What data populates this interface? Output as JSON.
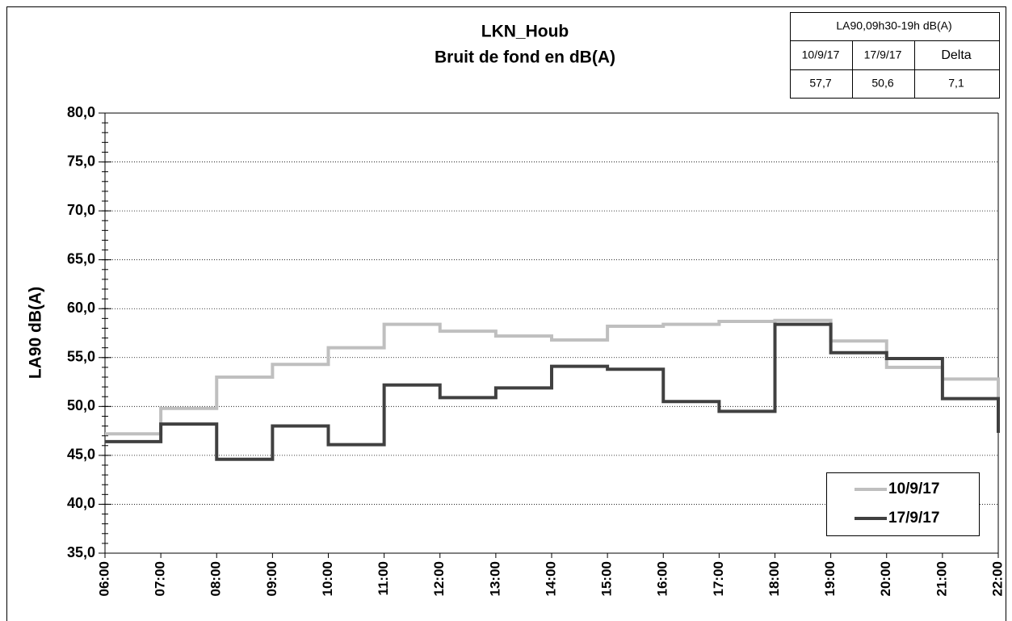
{
  "chart_data": {
    "type": "step",
    "title": "LKN_Houb",
    "subtitle": "Bruit de fond en dB(A)",
    "y_label": "LA90 dB(A)",
    "x": [
      "06:00",
      "07:00",
      "08:00",
      "09:00",
      "10:00",
      "11:00",
      "12:00",
      "13:00",
      "14:00",
      "15:00",
      "16:00",
      "17:00",
      "18:00",
      "19:00",
      "20:00",
      "21:00",
      "22:00"
    ],
    "series": [
      {
        "name": "10/9/17",
        "color": "#bfbfbf",
        "values": [
          47.2,
          49.8,
          53.0,
          54.3,
          56.0,
          58.4,
          57.7,
          57.2,
          56.8,
          58.2,
          58.4,
          58.7,
          58.8,
          56.7,
          54.0,
          52.8,
          49.0
        ]
      },
      {
        "name": "17/9/17",
        "color": "#404040",
        "values": [
          46.4,
          48.2,
          44.6,
          48.0,
          46.1,
          52.2,
          50.9,
          51.9,
          54.1,
          53.8,
          50.5,
          49.5,
          58.4,
          55.5,
          54.9,
          50.8,
          47.3
        ]
      }
    ],
    "ylim": [
      35,
      80
    ],
    "yticks": [
      {
        "value": 35,
        "label": "35,0"
      },
      {
        "value": 40,
        "label": "40,0"
      },
      {
        "value": 45,
        "label": "45,0"
      },
      {
        "value": 50,
        "label": "50,0"
      },
      {
        "value": 55,
        "label": "55,0"
      },
      {
        "value": 60,
        "label": "60,0"
      },
      {
        "value": 65,
        "label": "65,0"
      },
      {
        "value": 70,
        "label": "70,0"
      },
      {
        "value": 75,
        "label": "75,0"
      },
      {
        "value": 80,
        "label": "80,0"
      }
    ],
    "grid": true,
    "legend": "lower right"
  },
  "summary_table": {
    "header": "LA90,09h30-19h dB(A)",
    "columns": [
      "10/9/17",
      "17/9/17",
      "Delta"
    ],
    "values": [
      "57,7",
      "50,6",
      "7,1"
    ]
  }
}
